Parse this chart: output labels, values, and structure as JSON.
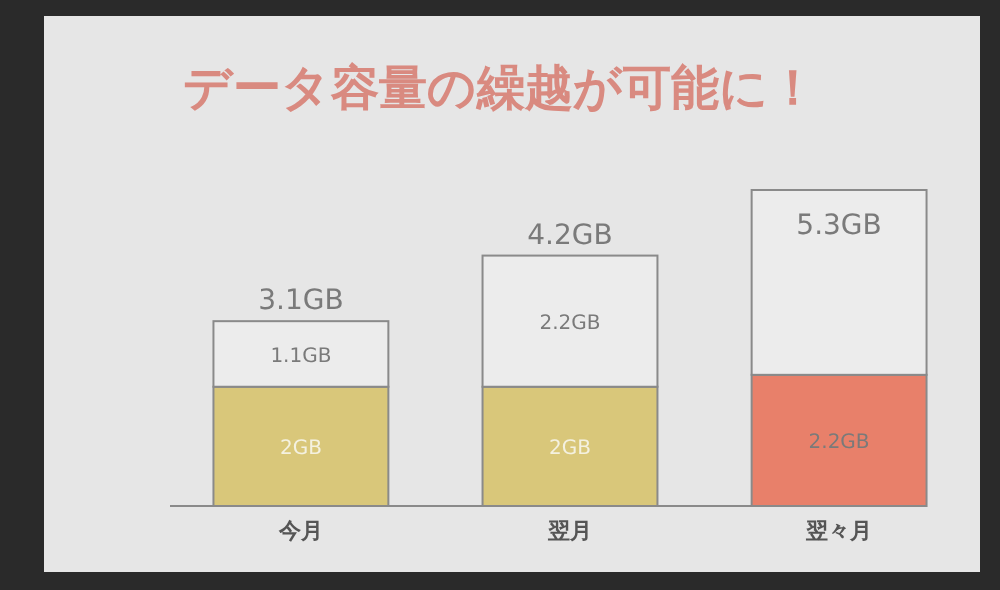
{
  "chart_data": {
    "type": "bar",
    "title": "データ容量の繰越が可能に！",
    "stacked": true,
    "categories": [
      "今月",
      "翌月",
      "翌々月"
    ],
    "series": [
      {
        "colors": [
          "#d9c77a",
          "#d9c77a",
          "#e8806a"
        ],
        "values": [
          2,
          2,
          2.2
        ],
        "value_labels": [
          "2GB",
          "2GB",
          "2.2GB"
        ]
      },
      {
        "color": "#ececec",
        "values": [
          1.1,
          2.2,
          3.1
        ],
        "value_labels": [
          "1.1GB",
          "2.2GB",
          null
        ]
      }
    ],
    "totals": [
      "3.1GB",
      "4.2GB",
      "5.3GB"
    ]
  }
}
